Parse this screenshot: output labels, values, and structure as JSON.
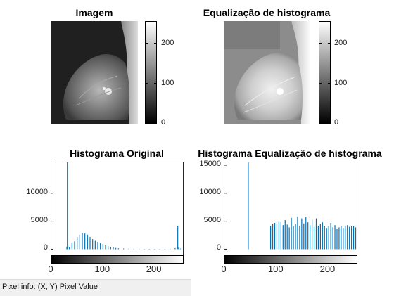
{
  "panels": {
    "image_original": {
      "title": "Imagem"
    },
    "image_equalized": {
      "title": "Equalização de histograma"
    },
    "hist_original": {
      "title": "Histograma Original"
    },
    "hist_equalized": {
      "title": "Histograma Equalização de histograma"
    }
  },
  "colorbar": {
    "ticks": [
      "200",
      "100",
      "0"
    ]
  },
  "status_bar": {
    "text": "Pixel info: (X, Y)  Pixel Value"
  },
  "chart_data": [
    {
      "type": "bar",
      "title": "Histograma Original",
      "xlabel": "",
      "ylabel": "",
      "xlim": [
        0,
        255
      ],
      "ylim": [
        -1200,
        15500
      ],
      "xticks": [
        "0",
        "100",
        "200"
      ],
      "yticks": [
        "0",
        "5000",
        "10000"
      ],
      "series": [
        {
          "color": "#0072bd",
          "x": [
            30,
            31,
            32,
            35,
            40,
            45,
            50,
            55,
            60,
            65,
            70,
            75,
            80,
            85,
            90,
            95,
            100,
            105,
            110,
            115,
            120,
            125,
            130,
            140,
            150,
            160,
            170,
            180,
            190,
            200,
            210,
            220,
            230,
            240,
            245,
            247,
            250
          ],
          "values": [
            400,
            15500,
            600,
            300,
            1100,
            1400,
            2200,
            2600,
            2900,
            2800,
            2600,
            2200,
            1800,
            1500,
            1300,
            1100,
            900,
            700,
            500,
            400,
            300,
            220,
            160,
            120,
            90,
            80,
            70,
            60,
            55,
            50,
            50,
            60,
            80,
            200,
            4200,
            300,
            100
          ]
        }
      ]
    },
    {
      "type": "bar",
      "title": "Histograma Equalização de histograma",
      "xlabel": "",
      "ylabel": "",
      "xlim": [
        0,
        255
      ],
      "ylim": [
        -1200,
        15500
      ],
      "xticks": [
        "0",
        "100",
        "200"
      ],
      "yticks": [
        "0",
        "5000",
        "10000",
        "15000"
      ],
      "series": [
        {
          "color": "#0072bd",
          "x": [
            46,
            89,
            93,
            97,
            101,
            105,
            109,
            113,
            117,
            121,
            125,
            129,
            133,
            137,
            141,
            145,
            149,
            153,
            157,
            161,
            165,
            169,
            173,
            177,
            181,
            185,
            189,
            193,
            197,
            201,
            205,
            209,
            213,
            217,
            221,
            225,
            229,
            233,
            237,
            241,
            245,
            249,
            253
          ],
          "values": [
            15500,
            4200,
            4500,
            4700,
            4600,
            4900,
            4800,
            4300,
            5200,
            4400,
            3900,
            5600,
            4100,
            4500,
            5800,
            4200,
            5500,
            4600,
            5700,
            4800,
            4300,
            5300,
            4000,
            5500,
            4200,
            4500,
            4800,
            4200,
            3800,
            4100,
            4700,
            3900,
            4300,
            3700,
            3900,
            4200,
            3800,
            4100,
            4300,
            4000,
            4200,
            4100,
            3900
          ]
        }
      ]
    }
  ]
}
